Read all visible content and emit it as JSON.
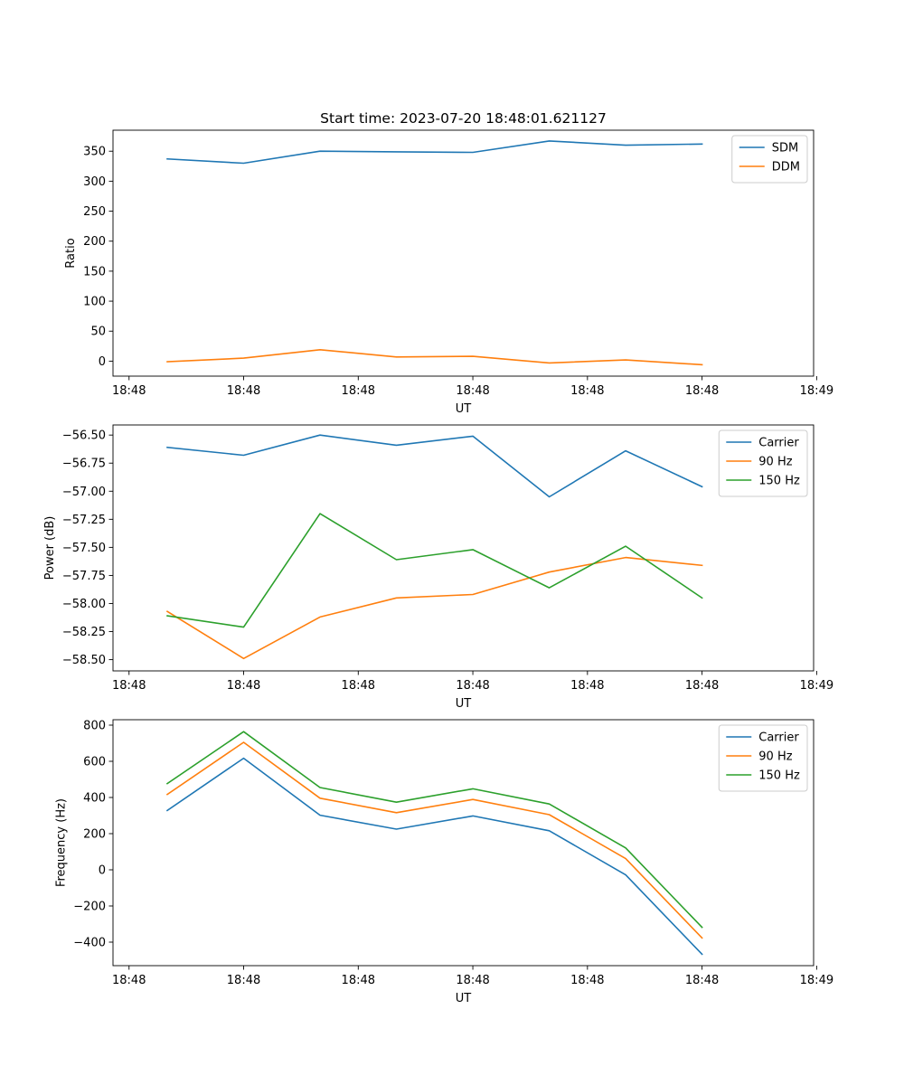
{
  "title": "Start time: 2023-07-20 18:48:01.621127",
  "colors": {
    "blue": "#1f77b4",
    "orange": "#ff7f0e",
    "green": "#2ca02c"
  },
  "chart_data": [
    {
      "type": "line",
      "title": "Start time: 2023-07-20 18:48:01.621127",
      "xlabel": "UT",
      "ylabel": "Ratio",
      "x": [
        1,
        2,
        3,
        4,
        5,
        6,
        7,
        8
      ],
      "xlim": [
        0.29,
        9.46
      ],
      "x_ticks": [
        0.5,
        2.0,
        3.5,
        5.0,
        6.5,
        8.0,
        9.5
      ],
      "x_tick_labels": [
        "18:48",
        "18:48",
        "18:48",
        "18:48",
        "18:48",
        "18:48",
        "18:49"
      ],
      "ylim": [
        -25,
        385
      ],
      "y_ticks": [
        0,
        50,
        100,
        150,
        200,
        250,
        300,
        350
      ],
      "y_tick_labels": [
        "0",
        "50",
        "100",
        "150",
        "200",
        "250",
        "300",
        "350"
      ],
      "legend": "top-right",
      "series": [
        {
          "name": "SDM",
          "color": "#1f77b4",
          "values": [
            337,
            330,
            350,
            349,
            348,
            367,
            360,
            362
          ]
        },
        {
          "name": "DDM",
          "color": "#ff7f0e",
          "values": [
            -1,
            5,
            19,
            7,
            8,
            -3,
            2,
            -6
          ]
        }
      ]
    },
    {
      "type": "line",
      "xlabel": "UT",
      "ylabel": "Power (dB)",
      "x": [
        1,
        2,
        3,
        4,
        5,
        6,
        7,
        8
      ],
      "xlim": [
        0.29,
        9.46
      ],
      "x_ticks": [
        0.5,
        2.0,
        3.5,
        5.0,
        6.5,
        8.0,
        9.5
      ],
      "x_tick_labels": [
        "18:48",
        "18:48",
        "18:48",
        "18:48",
        "18:48",
        "18:48",
        "18:49"
      ],
      "ylim": [
        -58.6,
        -56.41
      ],
      "y_ticks": [
        -58.5,
        -58.25,
        -58.0,
        -57.75,
        -57.5,
        -57.25,
        -57.0,
        -56.75,
        -56.5
      ],
      "y_tick_labels": [
        "−58.50",
        "−58.25",
        "−58.00",
        "−57.75",
        "−57.50",
        "−57.25",
        "−57.00",
        "−56.75",
        "−56.50"
      ],
      "legend": "top-right",
      "series": [
        {
          "name": "Carrier",
          "color": "#1f77b4",
          "values": [
            -56.61,
            -56.68,
            -56.5,
            -56.59,
            -56.51,
            -57.05,
            -56.64,
            -56.96
          ]
        },
        {
          "name": "90 Hz",
          "color": "#ff7f0e",
          "values": [
            -58.07,
            -58.49,
            -58.12,
            -57.95,
            -57.92,
            -57.72,
            -57.59,
            -57.66
          ]
        },
        {
          "name": "150 Hz",
          "color": "#2ca02c",
          "values": [
            -58.11,
            -58.21,
            -57.2,
            -57.61,
            -57.52,
            -57.86,
            -57.49,
            -57.95
          ]
        }
      ]
    },
    {
      "type": "line",
      "xlabel": "UT",
      "ylabel": "Frequency (Hz)",
      "x": [
        1,
        2,
        3,
        4,
        5,
        6,
        7,
        8
      ],
      "xlim": [
        0.29,
        9.46
      ],
      "x_ticks": [
        0.5,
        2.0,
        3.5,
        5.0,
        6.5,
        8.0,
        9.5
      ],
      "x_tick_labels": [
        "18:48",
        "18:48",
        "18:48",
        "18:48",
        "18:48",
        "18:48",
        "18:49"
      ],
      "ylim": [
        -530,
        830
      ],
      "y_ticks": [
        -400,
        -200,
        0,
        200,
        400,
        600,
        800
      ],
      "y_tick_labels": [
        "−400",
        "−200",
        "0",
        "200",
        "400",
        "600",
        "800"
      ],
      "legend": "top-right",
      "series": [
        {
          "name": "Carrier",
          "color": "#1f77b4",
          "values": [
            328,
            617,
            302,
            225,
            298,
            216,
            -28,
            -467
          ]
        },
        {
          "name": "90 Hz",
          "color": "#ff7f0e",
          "values": [
            417,
            705,
            396,
            316,
            389,
            305,
            62,
            -377
          ]
        },
        {
          "name": "150 Hz",
          "color": "#2ca02c",
          "values": [
            477,
            764,
            455,
            374,
            448,
            364,
            121,
            -318
          ]
        }
      ]
    }
  ]
}
